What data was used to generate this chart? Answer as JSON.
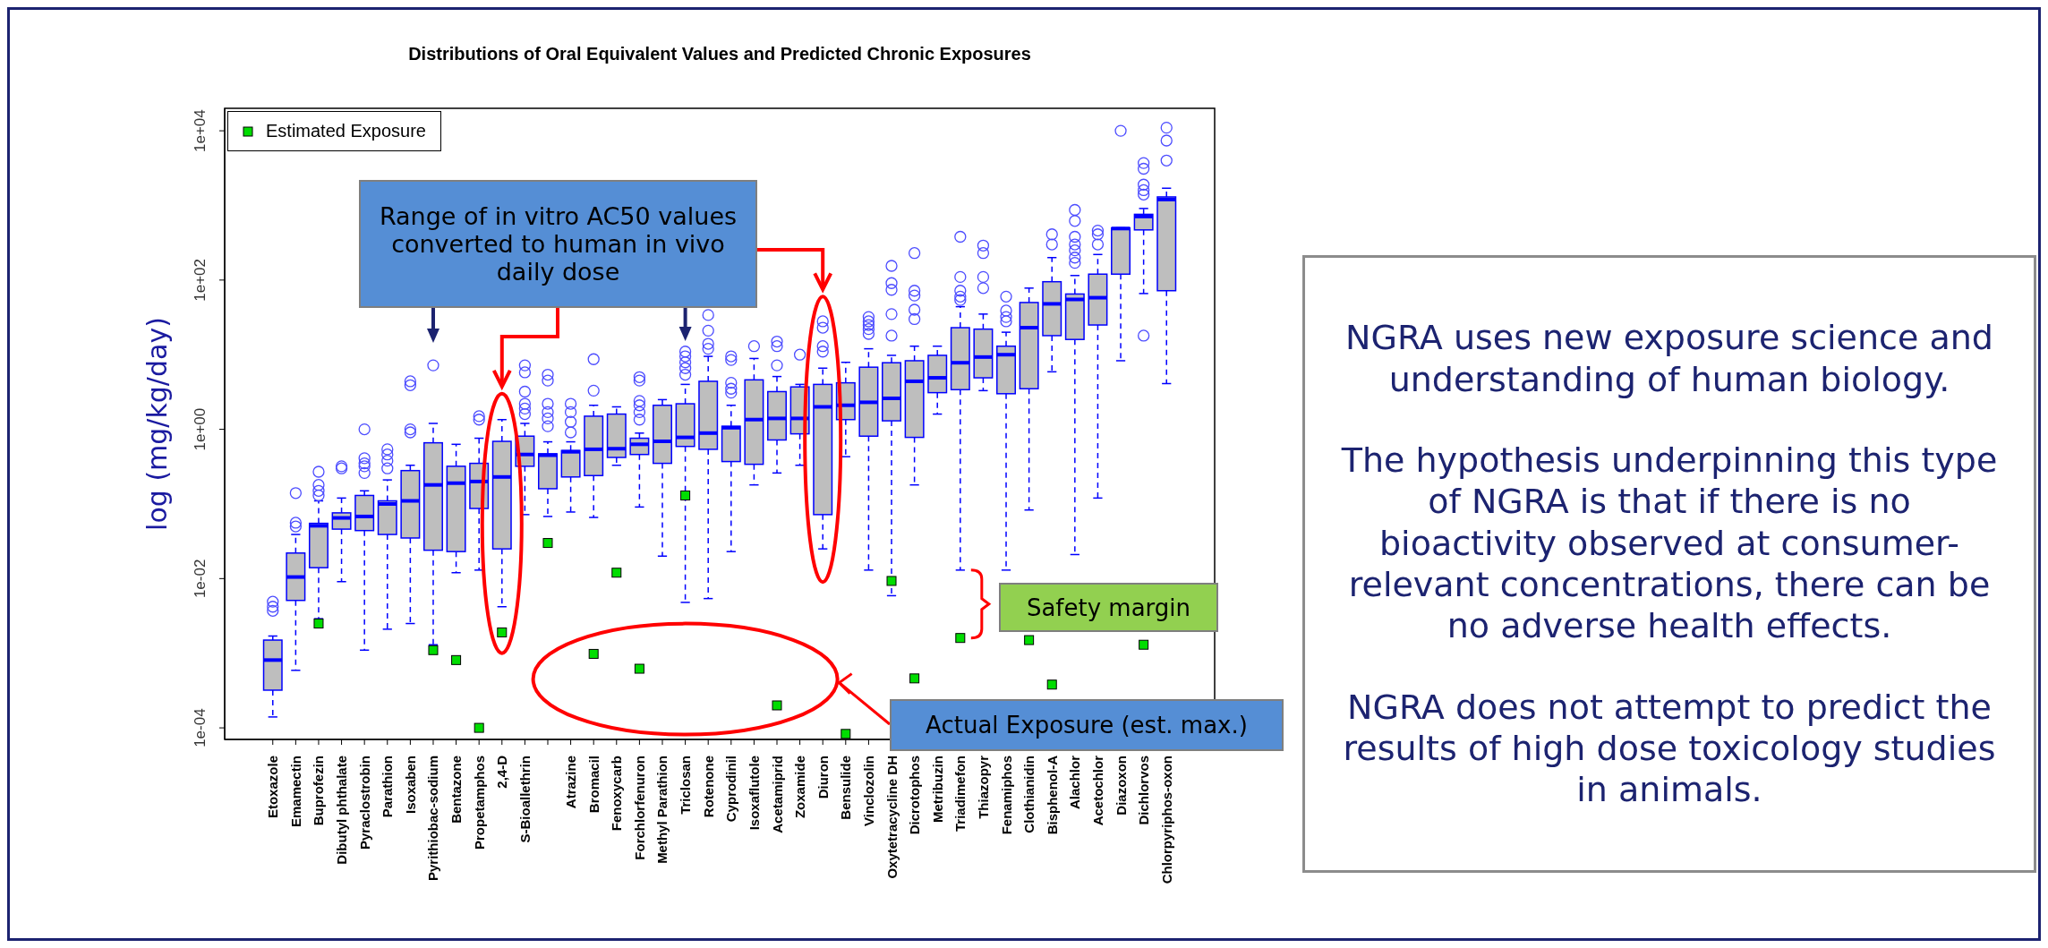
{
  "chart_data": {
    "type": "box",
    "title": "Distributions of Oral Equivalent Values and Predicted Chronic Exposures",
    "ylabel": "log (mg/kg/day)",
    "categories": [
      "Etoxazole",
      "Emamectin",
      "Buprofezin",
      "Dibutyl phthalate",
      "Pyraclostrobin",
      "Parathion",
      "Isoxaben",
      "Pyrithiobac-sodium",
      "Bentazone",
      "Propetamphos",
      "2,4-D",
      "S-Bioallethrin",
      null,
      "Atrazine",
      "Bromacil",
      "Fenoxycarb",
      "Forchlorfenuron",
      "Methyl Parathion",
      "Triclosan",
      "Rotenone",
      "Cyprodinil",
      "Isoxaflutole",
      "Acetamiprid",
      "Zoxamide",
      "Diuron",
      "Bensulide",
      "Vinclozolin",
      "Oxytetracycline DH",
      "Dicrotophos",
      "Metribuzin",
      "Triadimefon",
      "Thiazopyr",
      "Fenamiphos",
      "Clothianidin",
      "Bisphenol-A",
      "Alachlor",
      "Acetochlor",
      "Diazoxon",
      "Dichlorvos",
      "Chlorpyriphos-oxon"
    ],
    "color": "#bebebe",
    "boxes": [
      {
        "low": 0.00014,
        "q1": 0.00032,
        "median": 0.00081,
        "q3": 0.0015,
        "high": 0.0017,
        "outliers": [
          0.0049,
          0.0042,
          0.0037
        ]
      },
      {
        "low": 0.00059,
        "q1": 0.0051,
        "median": 0.0105,
        "q3": 0.022,
        "high": 0.039,
        "outliers": [
          0.14,
          0.056,
          0.05
        ]
      },
      {
        "low": 0.0029,
        "q1": 0.014,
        "median": 0.051,
        "q3": 0.055,
        "high": 0.11,
        "outliers": [
          0.27,
          0.18,
          0.15,
          0.13
        ]
      },
      {
        "low": 0.0091,
        "q1": 0.046,
        "median": 0.065,
        "q3": 0.076,
        "high": 0.12,
        "outliers": [
          0.32,
          0.3
        ]
      },
      {
        "low": 0.0011,
        "q1": 0.044,
        "median": 0.068,
        "q3": 0.13,
        "high": 0.15,
        "outliers": [
          1.0,
          0.41,
          0.35,
          0.32,
          0.26
        ]
      },
      {
        "low": 0.0021,
        "q1": 0.039,
        "median": 0.1,
        "q3": 0.11,
        "high": 0.21,
        "outliers": [
          0.54,
          0.46,
          0.38,
          0.3
        ]
      },
      {
        "low": 0.0025,
        "q1": 0.035,
        "median": 0.11,
        "q3": 0.28,
        "high": 0.33,
        "outliers": [
          4.4,
          3.9,
          1.0,
          0.91
        ]
      },
      {
        "low": 0.0013,
        "q1": 0.024,
        "median": 0.18,
        "q3": 0.66,
        "high": 1.2,
        "outliers": [
          7.2
        ]
      },
      {
        "low": 0.012,
        "q1": 0.023,
        "median": 0.19,
        "q3": 0.32,
        "high": 0.63
      },
      {
        "low": 0.013,
        "q1": 0.087,
        "median": 0.2,
        "q3": 0.35,
        "high": 0.76,
        "outliers": [
          1.5,
          1.35
        ]
      },
      {
        "low": 0.0042,
        "q1": 0.025,
        "median": 0.23,
        "q3": 0.69,
        "high": 1.35
      },
      {
        "low": 0.072,
        "q1": 0.32,
        "median": 0.46,
        "q3": 0.81,
        "high": 1.2,
        "outliers": [
          7.2,
          5.8,
          3.2,
          2.2,
          1.9,
          1.6
        ]
      },
      {
        "low": 0.068,
        "q1": 0.16,
        "median": 0.45,
        "q3": 0.47,
        "high": 0.68,
        "outliers": [
          5.4,
          4.5,
          2.2,
          1.7,
          1.4,
          1.1
        ]
      },
      {
        "low": 0.078,
        "q1": 0.23,
        "median": 0.5,
        "q3": 0.52,
        "high": 0.68,
        "outliers": [
          2.2,
          1.7,
          1.26,
          0.91
        ]
      },
      {
        "low": 0.066,
        "q1": 0.24,
        "median": 0.54,
        "q3": 1.5,
        "high": 2.1,
        "outliers": [
          8.7,
          3.3
        ]
      },
      {
        "low": 0.33,
        "q1": 0.42,
        "median": 0.55,
        "q3": 1.6,
        "high": 2.0
      },
      {
        "low": 0.091,
        "q1": 0.46,
        "median": 0.63,
        "q3": 0.76,
        "high": 0.89,
        "outliers": [
          5.0,
          4.5,
          2.4,
          2.1,
          1.7,
          1.35
        ]
      },
      {
        "low": 0.02,
        "q1": 0.35,
        "median": 0.69,
        "q3": 2.1,
        "high": 2.5
      },
      {
        "low": 0.0048,
        "q1": 0.59,
        "median": 0.78,
        "q3": 2.2,
        "high": 4.0,
        "outliers": [
          11,
          9.5,
          7.9,
          6.6,
          5.4
        ]
      },
      {
        "low": 0.0054,
        "q1": 0.54,
        "median": 0.89,
        "q3": 4.4,
        "high": 9.5,
        "outliers": [
          34,
          21,
          14,
          12
        ]
      },
      {
        "low": 0.023,
        "q1": 0.37,
        "median": 1.05,
        "q3": 1.1,
        "high": 2.1,
        "outliers": [
          9.5,
          8.5,
          4.2,
          3.5,
          3.1
        ]
      },
      {
        "low": 0.18,
        "q1": 0.34,
        "median": 1.35,
        "q3": 4.6,
        "high": 8.9,
        "outliers": [
          13
        ]
      },
      {
        "low": 0.26,
        "q1": 0.72,
        "median": 1.4,
        "q3": 3.2,
        "high": 5.1,
        "outliers": [
          15,
          13,
          7.2
        ]
      },
      {
        "low": 0.33,
        "q1": 0.87,
        "median": 1.4,
        "q3": 3.7,
        "high": 4.0,
        "outliers": [
          10
        ]
      },
      {
        "low": 0.025,
        "q1": 0.072,
        "median": 2.0,
        "q3": 4.0,
        "high": 6.6,
        "outliers": [
          28,
          23,
          13,
          11
        ]
      },
      {
        "low": 0.43,
        "q1": 1.35,
        "median": 2.1,
        "q3": 4.2,
        "high": 7.9
      },
      {
        "low": 0.013,
        "q1": 0.81,
        "median": 2.3,
        "q3": 6.8,
        "high": 12,
        "outliers": [
          32,
          28,
          25,
          22,
          19
        ]
      },
      {
        "low": 0.0059,
        "q1": 1.3,
        "median": 2.6,
        "q3": 7.8,
        "high": 9.8,
        "outliers": [
          155,
          91,
          74,
          35,
          18
        ]
      },
      {
        "low": 0.18,
        "q1": 0.78,
        "median": 4.4,
        "q3": 8.3,
        "high": 13,
        "outliers": [
          230,
          72,
          62,
          40,
          30
        ]
      },
      {
        "low": 1.6,
        "q1": 3.1,
        "median": 4.9,
        "q3": 9.8,
        "high": 13
      },
      {
        "low": 0.013,
        "q1": 3.4,
        "median": 7.8,
        "q3": 23,
        "high": 44,
        "outliers": [
          380,
          110,
          72,
          60,
          54
        ]
      },
      {
        "low": 3.3,
        "q1": 4.9,
        "median": 9.3,
        "q3": 22,
        "high": 35,
        "outliers": [
          290,
          230,
          110,
          78
        ]
      },
      {
        "low": 0.013,
        "q1": 3.0,
        "median": 10,
        "q3": 13,
        "high": 20,
        "outliers": [
          60,
          39,
          32,
          28
        ]
      },
      {
        "low": 0.083,
        "q1": 3.5,
        "median": 23,
        "q3": 50,
        "high": 78
      },
      {
        "low": 5.9,
        "q1": 18,
        "median": 48,
        "q3": 95,
        "high": 200,
        "outliers": [
          410,
          300
        ]
      },
      {
        "low": 0.021,
        "q1": 16,
        "median": 55,
        "q3": 65,
        "high": 115,
        "outliers": [
          870,
          620,
          380,
          300,
          250,
          200,
          170
        ]
      },
      {
        "low": 0.12,
        "q1": 25,
        "median": 58,
        "q3": 120,
        "high": 220,
        "outliers": [
          460,
          410,
          300
        ]
      },
      {
        "low": 8.3,
        "q1": 120,
        "median": 490,
        "q3": 500,
        "high": 500,
        "outliers": [
          10000
        ]
      },
      {
        "low": 66,
        "q1": 470,
        "median": 710,
        "q3": 760,
        "high": 910,
        "outliers": [
          3700,
          3100,
          1900,
          1600,
          1400,
          18
        ]
      },
      {
        "low": 4.1,
        "q1": 72,
        "median": 1200,
        "q3": 1300,
        "high": 1700,
        "outliers": [
          11000,
          7400,
          4000
        ]
      }
    ],
    "series": [
      {
        "name": "Estimated Exposure",
        "type": "scatter",
        "color": "#00dd00",
        "marker": "square",
        "values": [
          null,
          null,
          0.0025,
          null,
          null,
          null,
          null,
          0.0011,
          0.00081,
          0.0001,
          0.0019,
          null,
          0.03,
          null,
          0.00098,
          0.012,
          0.00062,
          null,
          0.13,
          null,
          null,
          null,
          0.0002,
          null,
          null,
          8.3e-05,
          null,
          0.0093,
          0.00046,
          null,
          0.0016,
          null,
          null,
          0.0015,
          0.00038,
          null,
          null,
          null,
          0.0013,
          null
        ]
      }
    ],
    "log": true,
    "ylim": [
      7e-05,
      20000
    ],
    "yticks": [
      {
        "value": 0.0001,
        "label": "1e-04"
      },
      {
        "value": 0.01,
        "label": "1e-02"
      },
      {
        "value": 1,
        "label": "1e+00"
      },
      {
        "value": 100,
        "label": "1e+02"
      },
      {
        "value": 10000,
        "label": "1e+04"
      }
    ],
    "legend": "top left",
    "annotations": [
      "Range of in vitro AC50 values converted to human in vivo daily dose",
      "Safety margin",
      "Actual Exposure (est. max.)",
      "NGRA uses new exposure science and understanding of human biology.",
      "The hypothesis underpinning this type of NGRA is that if there is no bioactivity observed at consumer-relevant concentrations, there can be no adverse health effects.",
      "NGRA does not attempt to predict the results of high dose toxicology studies in animals."
    ]
  }
}
